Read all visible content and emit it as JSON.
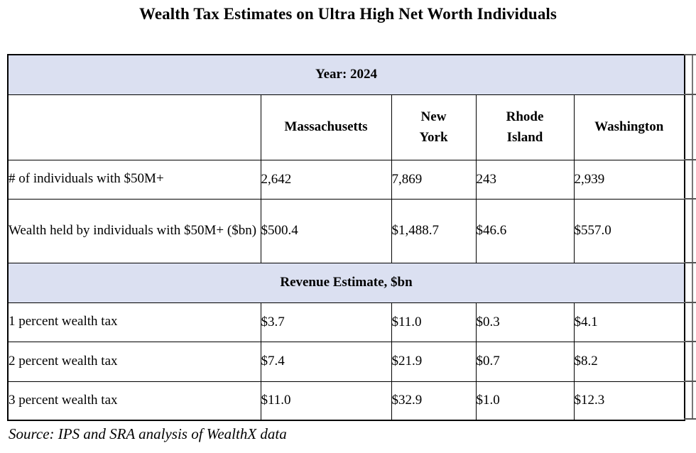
{
  "title": "Wealth Tax Estimates on Ultra High Net Worth Individuals",
  "table": {
    "year_header": "Year: 2024",
    "columns": [
      "",
      "Massachusetts",
      "New York",
      "Rhode Island",
      "Washington"
    ],
    "rows_top": [
      {
        "label": "# of individuals with $50M+",
        "values": [
          "2,642",
          "7,869",
          "243",
          "2,939"
        ]
      },
      {
        "label": "Wealth held by individuals with $50M+ ($bn)",
        "values": [
          "$500.4",
          "$1,488.7",
          "$46.6",
          "$557.0"
        ]
      }
    ],
    "section_header": "Revenue Estimate, $bn",
    "rows_revenue": [
      {
        "label": "1 percent wealth tax",
        "values": [
          "$3.7",
          "$11.0",
          "$0.3",
          "$4.1"
        ]
      },
      {
        "label": "2 percent wealth tax",
        "values": [
          "$7.4",
          "$21.9",
          "$0.7",
          "$8.2"
        ]
      },
      {
        "label": "3 percent wealth tax",
        "values": [
          "$11.0",
          "$32.9",
          "$1.0",
          "$12.3"
        ]
      }
    ]
  },
  "source": "Source: IPS and SRA analysis of WealthX data",
  "colors": {
    "band_background": "#dbe0f1",
    "border": "#000000",
    "text": "#000000"
  },
  "chart_data": {
    "type": "table",
    "title": "Wealth Tax Estimates on Ultra High Net Worth Individuals",
    "year": 2024,
    "columns": [
      "Massachusetts",
      "New York",
      "Rhode Island",
      "Washington"
    ],
    "rows": [
      {
        "label": "# of individuals with $50M+",
        "values": [
          2642,
          7869,
          243,
          2939
        ]
      },
      {
        "label": "Wealth held by individuals with $50M+ ($bn)",
        "values": [
          500.4,
          1488.7,
          46.6,
          557.0
        ]
      },
      {
        "label": "1 percent wealth tax — Revenue Estimate, $bn",
        "values": [
          3.7,
          11.0,
          0.3,
          4.1
        ]
      },
      {
        "label": "2 percent wealth tax — Revenue Estimate, $bn",
        "values": [
          7.4,
          21.9,
          0.7,
          8.2
        ]
      },
      {
        "label": "3 percent wealth tax — Revenue Estimate, $bn",
        "values": [
          11.0,
          32.9,
          1.0,
          12.3
        ]
      }
    ],
    "source": "Source: IPS and SRA analysis of WealthX data"
  }
}
